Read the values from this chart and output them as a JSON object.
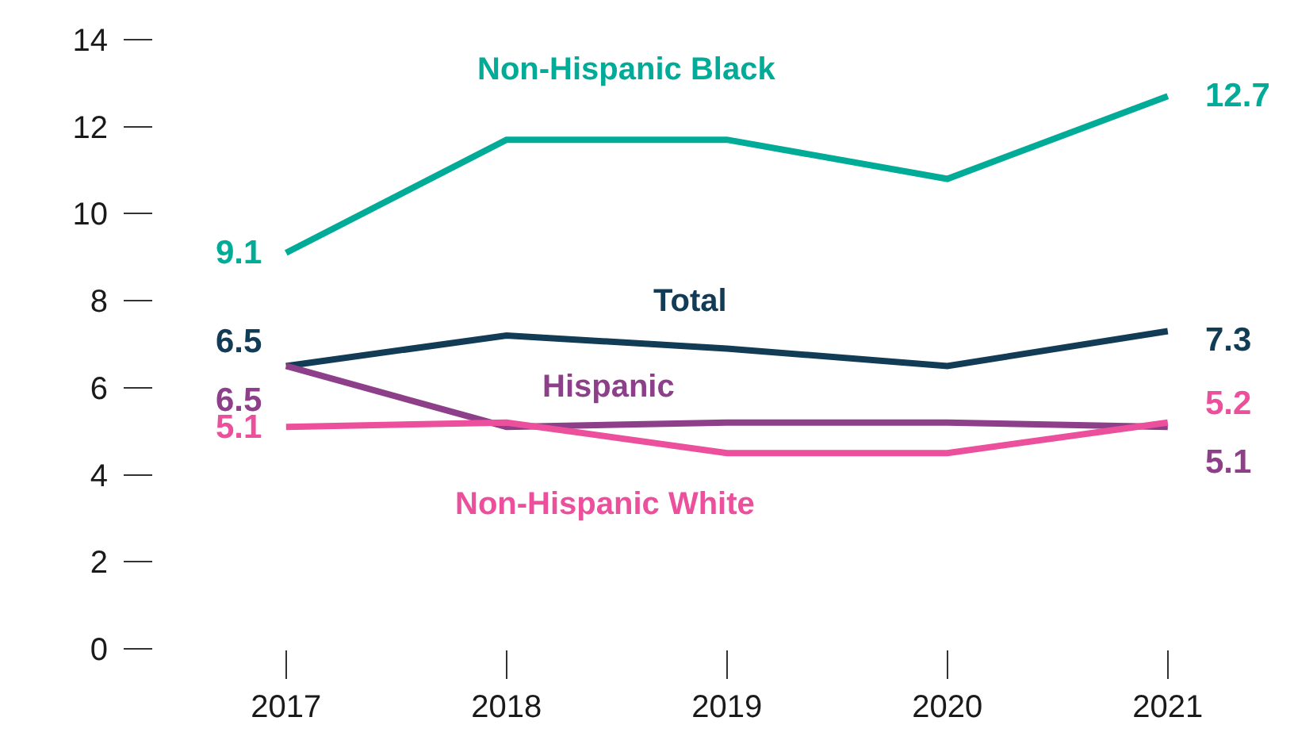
{
  "chart_data": {
    "type": "line",
    "categories": [
      "2017",
      "2018",
      "2019",
      "2020",
      "2021"
    ],
    "series": [
      {
        "name": "Non-Hispanic Black",
        "color": "#00ab98",
        "values": [
          9.1,
          11.7,
          11.7,
          10.8,
          12.7
        ],
        "value_labels": [
          "9.1",
          null,
          null,
          null,
          "12.7"
        ]
      },
      {
        "name": "Total",
        "color": "#123b56",
        "values": [
          6.5,
          7.2,
          6.9,
          6.5,
          7.3
        ],
        "value_labels": [
          "6.5",
          null,
          null,
          null,
          "7.3"
        ]
      },
      {
        "name": "Hispanic",
        "color": "#8e3f8a",
        "values": [
          6.5,
          5.1,
          5.2,
          5.2,
          5.1
        ],
        "value_labels": [
          "6.5",
          null,
          null,
          null,
          "5.1"
        ]
      },
      {
        "name": "Non-Hispanic White",
        "color": "#ec4f9b",
        "values": [
          5.1,
          5.2,
          4.5,
          4.5,
          5.2
        ],
        "value_labels": [
          "5.1",
          null,
          null,
          null,
          "5.2"
        ]
      }
    ],
    "ylim": [
      0,
      14
    ],
    "yticks": [
      0,
      2,
      4,
      6,
      8,
      10,
      12,
      14
    ],
    "legend": false,
    "marker": "none",
    "line_style": "solid"
  }
}
